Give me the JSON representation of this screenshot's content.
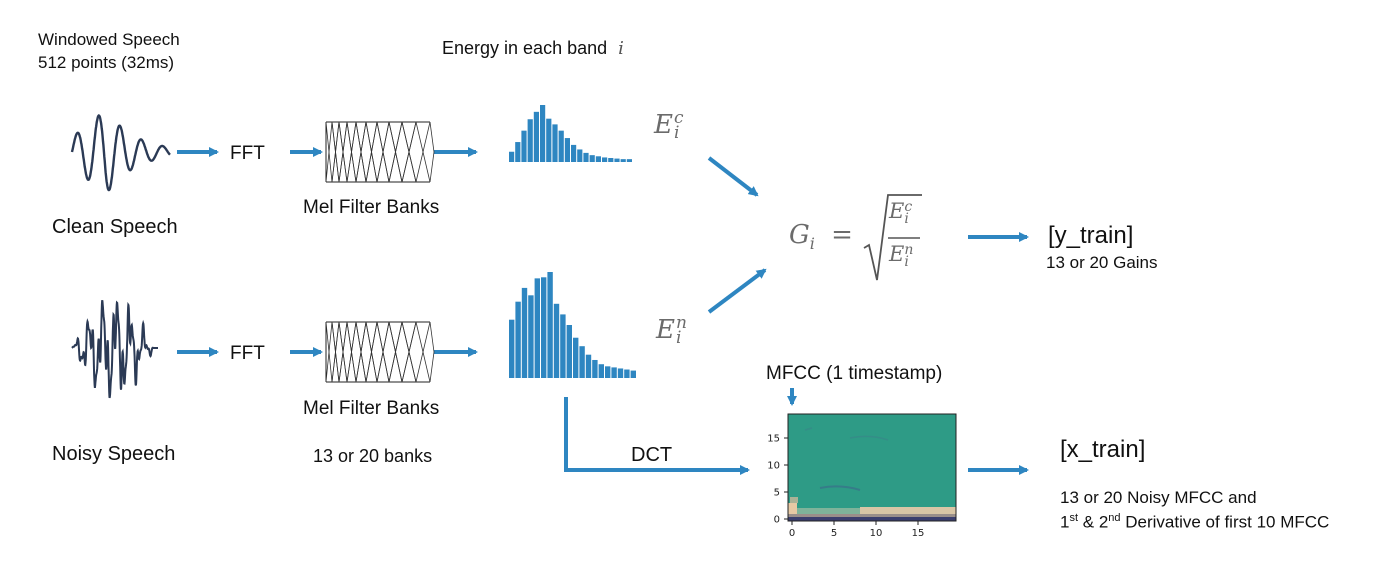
{
  "labels": {
    "windowed_line1": "Windowed Speech",
    "windowed_line2": "512 points (32ms)",
    "energy_title": "Energy in each band",
    "energy_index": "i",
    "fft_top": "FFT",
    "fft_bottom": "FFT",
    "mel_top": "Mel Filter Banks",
    "mel_bottom": "Mel Filter Banks",
    "clean_speech": "Clean Speech",
    "noisy_speech": "Noisy Speech",
    "banks_count": "13 or 20 banks",
    "dct": "DCT",
    "mfcc_title": "MFCC (1 timestamp)",
    "y_train": "[y_train]",
    "gains": "13 or 20 Gains",
    "x_train": "[x_train]",
    "x_desc_line1": "13 or 20 Noisy MFCC and",
    "x_desc_line2_a": "1",
    "x_desc_line2_sup1": "st",
    "x_desc_line2_b": " & 2",
    "x_desc_line2_sup2": "nd",
    "x_desc_line2_c": " Derivative of first 10 MFCC"
  },
  "math": {
    "ec_base": "E",
    "ec_sup": "c",
    "ec_sub": "i",
    "en_base": "E",
    "en_sup": "n",
    "en_sub": "i",
    "g_base": "G",
    "g_sub": "i",
    "equals": "="
  },
  "hist_clean": [
    0.18,
    0.35,
    0.55,
    0.75,
    0.88,
    1.0,
    0.76,
    0.66,
    0.55,
    0.42,
    0.3,
    0.22,
    0.16,
    0.12,
    0.1,
    0.08,
    0.07,
    0.06,
    0.05,
    0.05
  ],
  "hist_noisy": [
    0.55,
    0.72,
    0.85,
    0.78,
    0.94,
    0.95,
    1.0,
    0.7,
    0.6,
    0.5,
    0.38,
    0.3,
    0.22,
    0.17,
    0.13,
    0.11,
    0.1,
    0.09,
    0.08,
    0.07
  ],
  "mfcc_axes": {
    "y_ticks": [
      "0",
      "5",
      "10",
      "15"
    ],
    "x_ticks": [
      "0",
      "5",
      "10",
      "15"
    ]
  },
  "colors": {
    "arrow": "#2e86c1",
    "bars": "#2e86c1",
    "wave": "#2b3a55",
    "mfcc_bg": "#2e9b86",
    "mfcc_light": "#e7c9a4",
    "mfcc_dark": "#3b3f6e"
  }
}
